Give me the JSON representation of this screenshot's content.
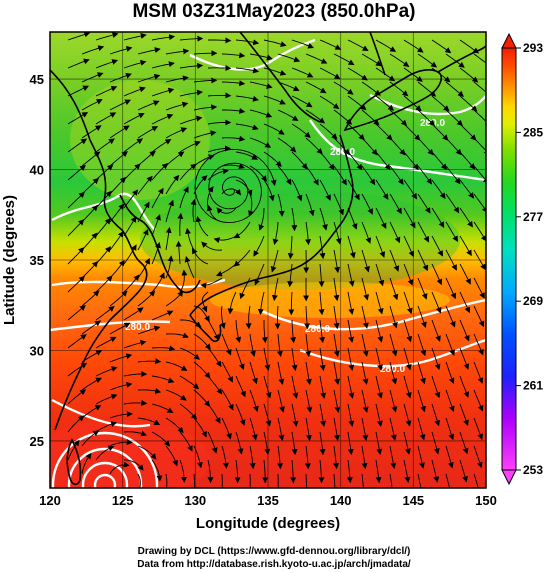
{
  "title": "MSM 03Z31May2023 (850.0hPa)",
  "xlabel": "Longitude (degrees)",
  "ylabel": "Latitude  (degrees)",
  "credit_line1": "Drawing by DCL (https://www.gfd-dennou.org/library/dcl/)",
  "credit_line2": "Data from http://database.rish.kyoto-u.ac.jp/arch/jmadata/",
  "chart_data": {
    "type": "heatmap",
    "title": "MSM 03Z31May2023 (850.0hPa)",
    "xlabel": "Longitude (degrees)",
    "ylabel": "Latitude  (degrees)",
    "xlim": [
      120,
      150
    ],
    "ylim": [
      22.4,
      47.6
    ],
    "x_ticks": [
      "120",
      "125",
      "130",
      "135",
      "140",
      "145",
      "150"
    ],
    "y_ticks": [
      "25",
      "30",
      "35",
      "40",
      "45"
    ],
    "grid": true,
    "colorbar": {
      "min": 253,
      "max": 293,
      "ticks": [
        "293",
        "285",
        "277",
        "269",
        "261",
        "253"
      ],
      "position": "right",
      "colors": [
        "#ff40ff",
        "#c000ff",
        "#5020ff",
        "#0000ff",
        "#0070ff",
        "#00b0ff",
        "#00d8d8",
        "#00e890",
        "#20e020",
        "#40d000",
        "#90e000",
        "#d8e800",
        "#ffff00",
        "#ffc000",
        "#ff8000",
        "#ff4000",
        "#f02000"
      ]
    },
    "contour_labels": [
      "280.0",
      "280.0",
      "280.0",
      "280.0",
      "280.0"
    ],
    "low_center": {
      "lon": 132.5,
      "lat": 38.9
    },
    "tropical_center": {
      "lon": 124.8,
      "lat": 22.8
    }
  }
}
